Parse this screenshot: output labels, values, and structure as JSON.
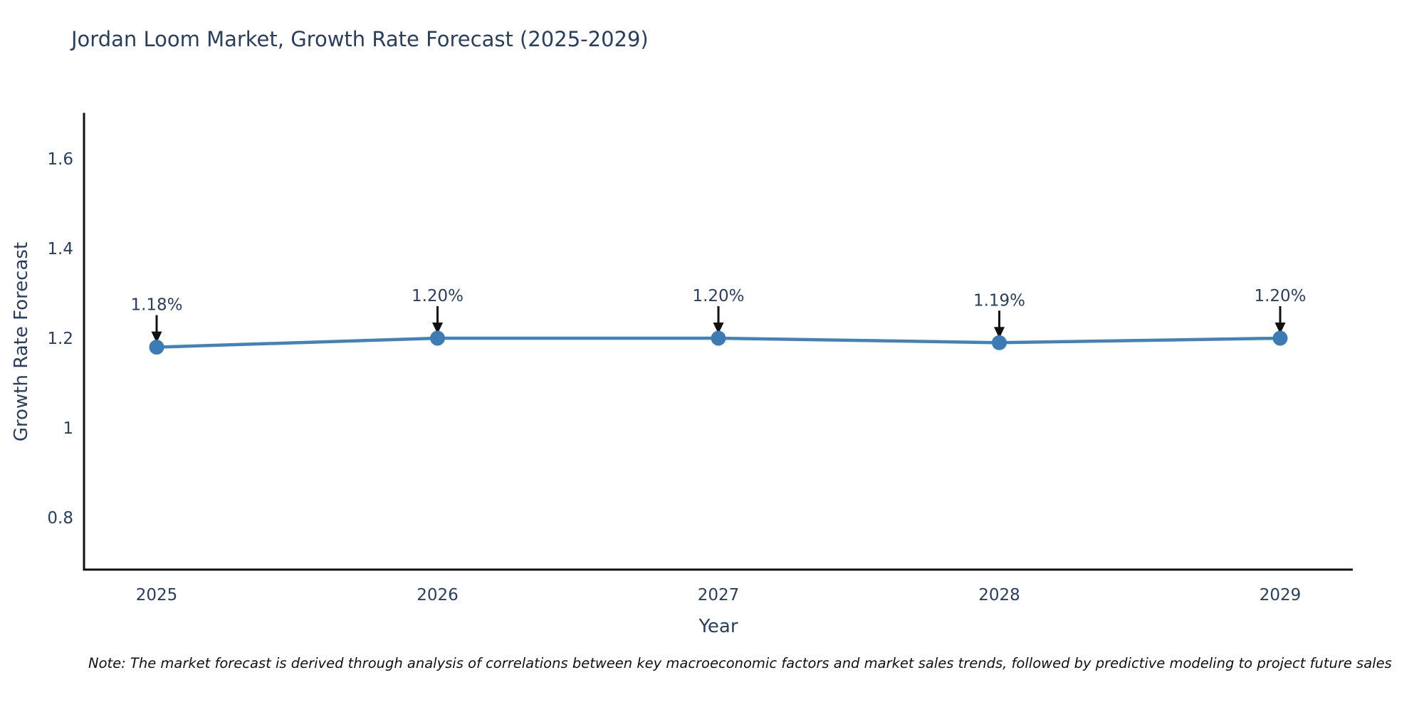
{
  "title": "Jordan Loom Market, Growth Rate Forecast (2025-2029)",
  "note": "Note: The market forecast is derived through analysis of correlations between key macroeconomic factors and market sales trends, followed by predictive modeling to project future sales",
  "colors": {
    "line": "#4282b8",
    "marker": "#3d7bb4",
    "text": "#2a3f5f",
    "axis": "#111111",
    "arrow": "#111111",
    "background": "#ffffff"
  },
  "chart_data": {
    "type": "line",
    "title": "Jordan Loom Market, Growth Rate Forecast (2025-2029)",
    "xlabel": "Year",
    "ylabel": "Growth Rate Forecast",
    "x": [
      "2025",
      "2026",
      "2027",
      "2028",
      "2029"
    ],
    "values": [
      1.18,
      1.2,
      1.2,
      1.19,
      1.2
    ],
    "point_labels": [
      "1.18%",
      "1.20%",
      "1.20%",
      "1.19%",
      "1.20%"
    ],
    "y_ticks": [
      {
        "label": "1.6",
        "value": 1.6
      },
      {
        "label": "1.4",
        "value": 1.4
      },
      {
        "label": "1.2",
        "value": 1.2
      },
      {
        "label": "1",
        "value": 1.0
      },
      {
        "label": "0.8",
        "value": 0.8
      }
    ],
    "ylim": [
      0.68,
      1.7
    ],
    "grid": false,
    "legend": "none",
    "annotations_style": "down-arrow-to-point"
  }
}
